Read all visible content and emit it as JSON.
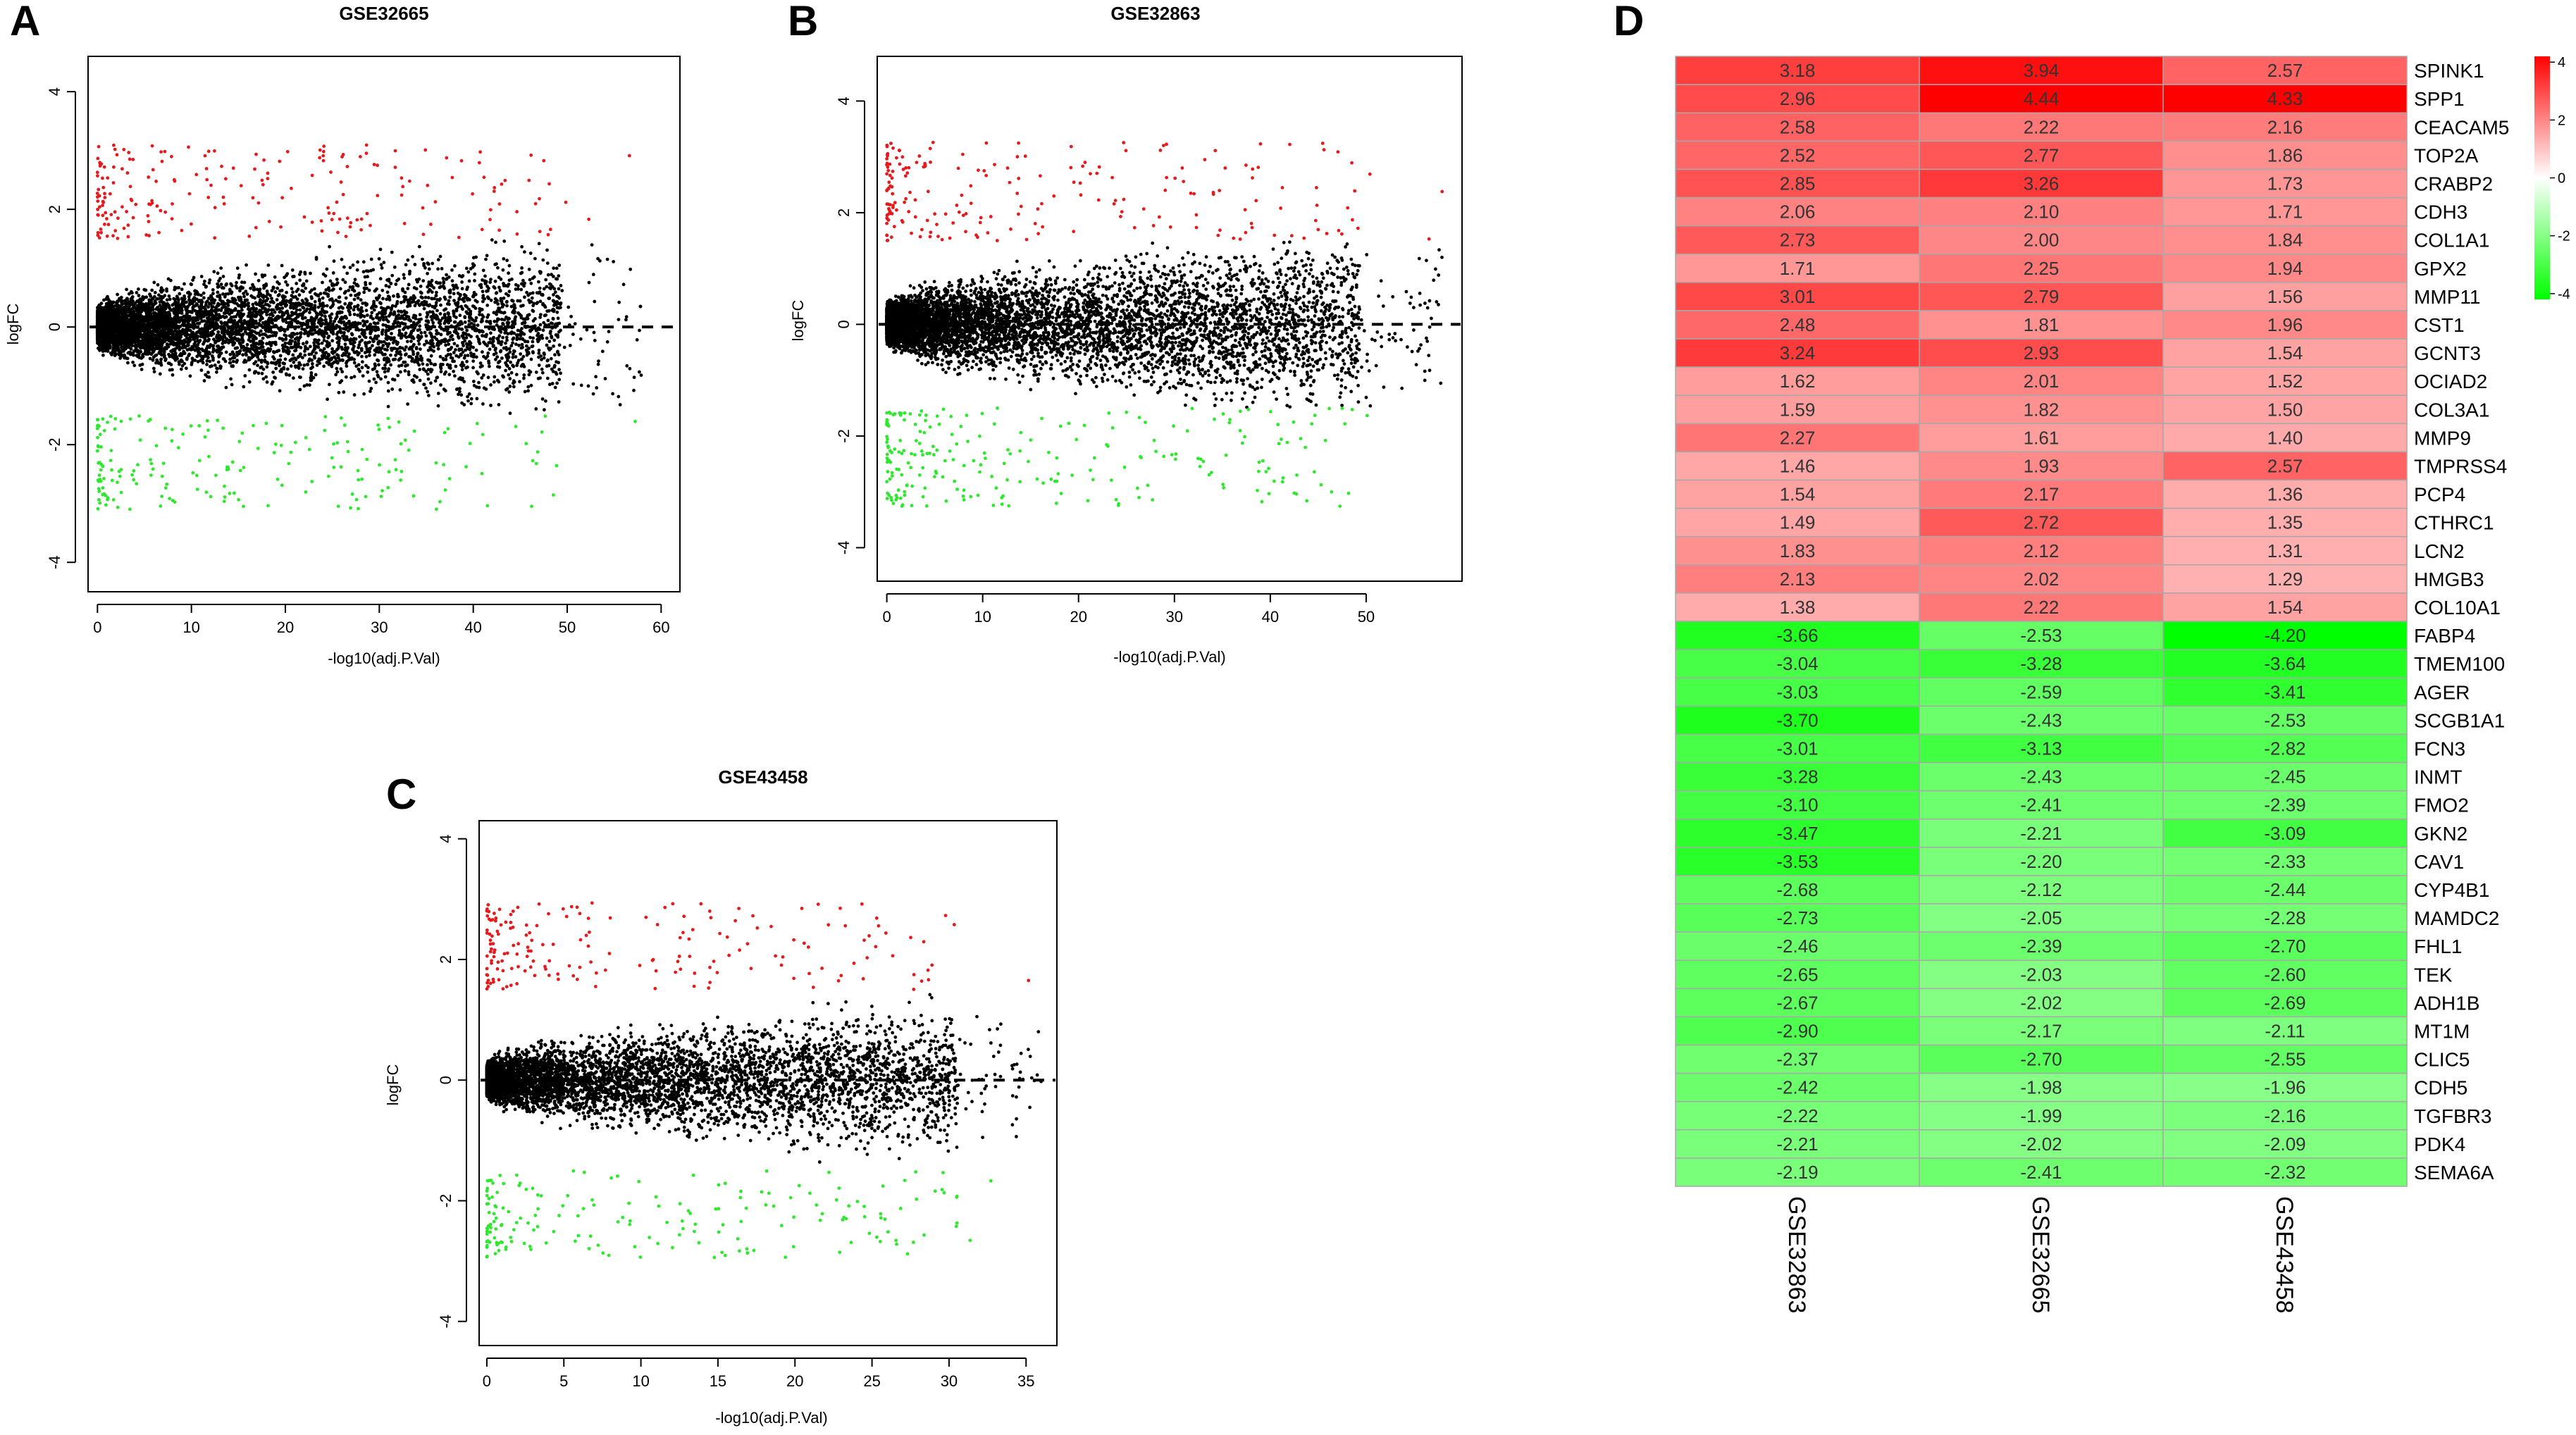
{
  "figure": {
    "panel_labels": [
      "A",
      "B",
      "C",
      "D"
    ]
  },
  "colors": {
    "up": "#e41a1c",
    "down": "#2ee82e",
    "neutral": "#000000",
    "heat_high": "#ff0000",
    "heat_mid": "#ffffff",
    "heat_low": "#00ff00"
  },
  "chart_data": [
    {
      "id": "A",
      "type": "scatter",
      "title": "GSE32665",
      "xlabel": "-log10(adj.P.Val)",
      "ylabel": "logFC",
      "xlim": [
        -1,
        62
      ],
      "ylim": [
        -4.5,
        4.6
      ],
      "xticks": [
        0,
        10,
        20,
        30,
        40,
        50,
        60
      ],
      "yticks": [
        -4,
        -2,
        0,
        2,
        4
      ],
      "xmax": 58,
      "hline": 0,
      "seed": 11,
      "n_points": 7000,
      "width_scale": 1.0,
      "legend": [],
      "series": [
        {
          "name": "up",
          "color": "#e41a1c"
        },
        {
          "name": "not significant",
          "color": "#000000"
        },
        {
          "name": "down",
          "color": "#2ee82e"
        }
      ]
    },
    {
      "id": "B",
      "type": "scatter",
      "title": "GSE32863",
      "xlabel": "-log10(adj.P.Val)",
      "ylabel": "logFC",
      "xlim": [
        -1,
        60
      ],
      "ylim": [
        -4.6,
        4.8
      ],
      "xticks": [
        0,
        10,
        20,
        30,
        40,
        50
      ],
      "yticks": [
        -4,
        -2,
        0,
        2,
        4
      ],
      "xmax": 58,
      "hline": 0,
      "seed": 23,
      "n_points": 7000,
      "width_scale": 1.1,
      "legend": [],
      "series": [
        {
          "name": "up",
          "color": "#e41a1c"
        },
        {
          "name": "not significant",
          "color": "#000000"
        },
        {
          "name": "down",
          "color": "#2ee82e"
        }
      ]
    },
    {
      "id": "C",
      "type": "scatter",
      "title": "GSE43458",
      "xlabel": "-log10(adj.P.Val)",
      "ylabel": "logFC",
      "xlim": [
        -0.5,
        37
      ],
      "ylim": [
        -4.4,
        4.3
      ],
      "xticks": [
        0,
        5,
        10,
        15,
        20,
        25,
        30,
        35
      ],
      "yticks": [
        -4,
        -2,
        0,
        2,
        4
      ],
      "xmax": 36,
      "hline": 0,
      "seed": 37,
      "n_points": 6000,
      "width_scale": 0.9,
      "legend": [],
      "series": [
        {
          "name": "up",
          "color": "#e41a1c"
        },
        {
          "name": "not significant",
          "color": "#000000"
        },
        {
          "name": "down",
          "color": "#2ee82e"
        }
      ]
    },
    {
      "id": "D",
      "type": "heatmap",
      "columns": [
        "GSE32863",
        "GSE32665",
        "GSE43458"
      ],
      "color_range": [
        -4.2,
        4.2
      ],
      "colorbar_ticks": [
        4,
        2,
        0,
        -2,
        -4
      ],
      "rows": [
        {
          "gene": "SPINK1",
          "values": [
            3.18,
            3.94,
            2.57
          ]
        },
        {
          "gene": "SPP1",
          "values": [
            2.96,
            4.44,
            4.33
          ]
        },
        {
          "gene": "CEACAM5",
          "values": [
            2.58,
            2.22,
            2.16
          ]
        },
        {
          "gene": "TOP2A",
          "values": [
            2.52,
            2.77,
            1.86
          ]
        },
        {
          "gene": "CRABP2",
          "values": [
            2.85,
            3.26,
            1.73
          ]
        },
        {
          "gene": "CDH3",
          "values": [
            2.06,
            2.1,
            1.71
          ]
        },
        {
          "gene": "COL1A1",
          "values": [
            2.73,
            2.0,
            1.84
          ]
        },
        {
          "gene": "GPX2",
          "values": [
            1.71,
            2.25,
            1.94
          ]
        },
        {
          "gene": "MMP11",
          "values": [
            3.01,
            2.79,
            1.56
          ]
        },
        {
          "gene": "CST1",
          "values": [
            2.48,
            1.81,
            1.96
          ]
        },
        {
          "gene": "GCNT3",
          "values": [
            3.24,
            2.93,
            1.54
          ]
        },
        {
          "gene": "OCIAD2",
          "values": [
            1.62,
            2.01,
            1.52
          ]
        },
        {
          "gene": "COL3A1",
          "values": [
            1.59,
            1.82,
            1.5
          ]
        },
        {
          "gene": "MMP9",
          "values": [
            2.27,
            1.61,
            1.4
          ]
        },
        {
          "gene": "TMPRSS4",
          "values": [
            1.46,
            1.93,
            2.57
          ]
        },
        {
          "gene": "PCP4",
          "values": [
            1.54,
            2.17,
            1.36
          ]
        },
        {
          "gene": "CTHRC1",
          "values": [
            1.49,
            2.72,
            1.35
          ]
        },
        {
          "gene": "LCN2",
          "values": [
            1.83,
            2.12,
            1.31
          ]
        },
        {
          "gene": "HMGB3",
          "values": [
            2.13,
            2.02,
            1.29
          ]
        },
        {
          "gene": "COL10A1",
          "values": [
            1.38,
            2.22,
            1.54
          ]
        },
        {
          "gene": "FABP4",
          "values": [
            -3.66,
            -2.53,
            -4.2
          ]
        },
        {
          "gene": "TMEM100",
          "values": [
            -3.04,
            -3.28,
            -3.64
          ]
        },
        {
          "gene": "AGER",
          "values": [
            -3.03,
            -2.59,
            -3.41
          ]
        },
        {
          "gene": "SCGB1A1",
          "values": [
            -3.7,
            -2.43,
            -2.53
          ]
        },
        {
          "gene": "FCN3",
          "values": [
            -3.01,
            -3.13,
            -2.82
          ]
        },
        {
          "gene": "INMT",
          "values": [
            -3.28,
            -2.43,
            -2.45
          ]
        },
        {
          "gene": "FMO2",
          "values": [
            -3.1,
            -2.41,
            -2.39
          ]
        },
        {
          "gene": "GKN2",
          "values": [
            -3.47,
            -2.21,
            -3.09
          ]
        },
        {
          "gene": "CAV1",
          "values": [
            -3.53,
            -2.2,
            -2.33
          ]
        },
        {
          "gene": "CYP4B1",
          "values": [
            -2.68,
            -2.12,
            -2.44
          ]
        },
        {
          "gene": "MAMDC2",
          "values": [
            -2.73,
            -2.05,
            -2.28
          ]
        },
        {
          "gene": "FHL1",
          "values": [
            -2.46,
            -2.39,
            -2.7
          ]
        },
        {
          "gene": "TEK",
          "values": [
            -2.65,
            -2.03,
            -2.6
          ]
        },
        {
          "gene": "ADH1B",
          "values": [
            -2.67,
            -2.02,
            -2.69
          ]
        },
        {
          "gene": "MT1M",
          "values": [
            -2.9,
            -2.17,
            -2.11
          ]
        },
        {
          "gene": "CLIC5",
          "values": [
            -2.37,
            -2.7,
            -2.55
          ]
        },
        {
          "gene": "CDH5",
          "values": [
            -2.42,
            -1.98,
            -1.96
          ]
        },
        {
          "gene": "TGFBR3",
          "values": [
            -2.22,
            -1.99,
            -2.16
          ]
        },
        {
          "gene": "PDK4",
          "values": [
            -2.21,
            -2.02,
            -2.09
          ]
        },
        {
          "gene": "SEMA6A",
          "values": [
            -2.19,
            -2.41,
            -2.32
          ]
        }
      ]
    }
  ]
}
